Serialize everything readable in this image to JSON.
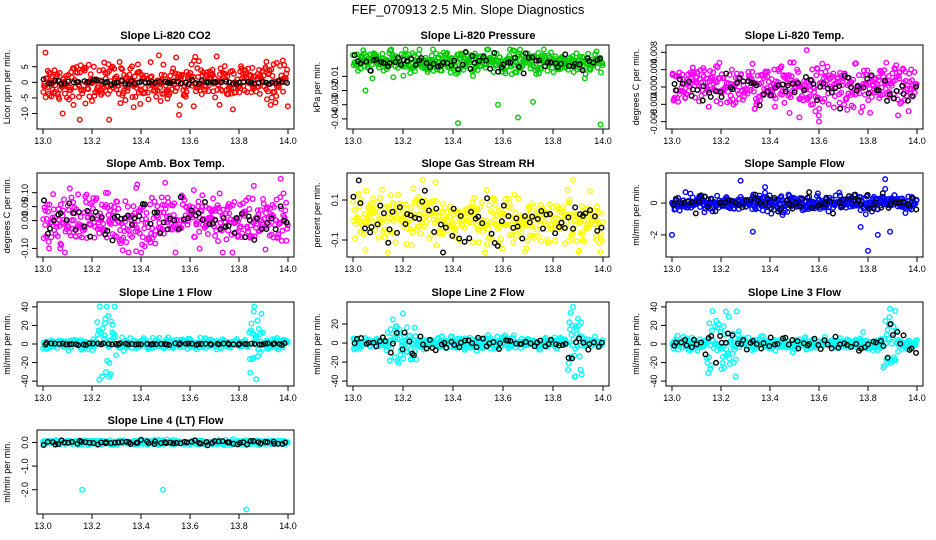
{
  "figure_title": "FEF_070913  2.5 Min. Slope Diagnostics",
  "colors": {
    "red": "#ff0000",
    "green": "#00cc00",
    "magenta": "#ff00ff",
    "yellow": "#ffff00",
    "blue": "#0000ff",
    "cyan": "#00ffff",
    "black": "#000000"
  },
  "chart_data": [
    {
      "type": "scatter",
      "title": "Slope Li-820 CO2",
      "ylabel": "Licor ppm per min.",
      "xlim": [
        13.0,
        14.0
      ],
      "xticks": [
        "13.0",
        "13.2",
        "13.4",
        "13.6",
        "13.8",
        "14.0"
      ],
      "ylim": [
        -14,
        11
      ],
      "yticks": [
        "-10",
        "-5",
        "0",
        "5"
      ],
      "ytick_values": [
        -10,
        -5,
        0,
        5
      ],
      "color": "red",
      "base": 0,
      "noise": 3.0,
      "black_noise": 0.4,
      "outliers": [
        [
          13.01,
          9.5
        ],
        [
          13.08,
          -10
        ],
        [
          13.15,
          -12
        ],
        [
          13.2,
          -6
        ],
        [
          13.27,
          -12
        ],
        [
          13.37,
          -8
        ],
        [
          13.48,
          -6
        ],
        [
          13.98,
          -3
        ]
      ]
    },
    {
      "type": "scatter",
      "title": "Slope Li-820 Pressure",
      "ylabel": "kPa per min.",
      "xlim": [
        13.0,
        14.0
      ],
      "xticks": [
        "13.0",
        "13.2",
        "13.4",
        "13.6",
        "13.8",
        "14.0"
      ],
      "ylim": [
        -0.045,
        0.01
      ],
      "yticks": [
        "-0.04",
        "-0.03",
        "-0.02",
        "-0.01"
      ],
      "ytick_values": [
        -0.04,
        -0.03,
        -0.02,
        -0.01
      ],
      "color": "green",
      "base": 0,
      "noise": 0.004,
      "black_noise": 0.003,
      "outliers": [
        [
          13.05,
          -0.02
        ],
        [
          13.42,
          -0.043
        ],
        [
          13.58,
          -0.03
        ],
        [
          13.66,
          -0.039
        ],
        [
          13.72,
          -0.028
        ],
        [
          13.99,
          -0.045
        ]
      ]
    },
    {
      "type": "scatter",
      "title": "Slope Li-820 Temp.",
      "ylabel": "degrees C per min.",
      "xlim": [
        13.0,
        14.0
      ],
      "xticks": [
        "13.0",
        "13.2",
        "13.4",
        "13.6",
        "13.8",
        "14.0"
      ],
      "ylim": [
        -0.009,
        0.009
      ],
      "yticks": [
        "-0.008",
        "-0.004",
        "0.000",
        "0.004",
        "0.008"
      ],
      "ytick_values": [
        -0.008,
        -0.004,
        0.0,
        0.004,
        0.008
      ],
      "color": "magenta",
      "base": 0,
      "noise": 0.0025,
      "black_noise": 0.0015,
      "outliers": [
        [
          13.55,
          0.0085
        ],
        [
          13.52,
          -0.007
        ],
        [
          13.6,
          -0.008
        ],
        [
          13.48,
          -0.006
        ]
      ]
    },
    {
      "type": "scatter",
      "title": "Slope Amb. Box Temp.",
      "ylabel": "degrees C per min.",
      "xlim": [
        13.0,
        14.0
      ],
      "xticks": [
        "13.0",
        "13.2",
        "13.4",
        "13.6",
        "13.8",
        "14.0"
      ],
      "ylim": [
        -0.12,
        0.16
      ],
      "yticks": [
        "-0.10",
        "0.00",
        "0.05",
        "0.10"
      ],
      "ytick_values": [
        -0.1,
        0.0,
        0.05,
        0.1
      ],
      "color": "magenta",
      "base": 0,
      "noise": 0.05,
      "black_noise": 0.04,
      "outliers": [
        [
          13.97,
          0.15
        ],
        [
          13.07,
          -0.1
        ],
        [
          13.38,
          -0.11
        ]
      ]
    },
    {
      "type": "scatter",
      "title": "Slope Gas Stream RH",
      "ylabel": "percent per min.",
      "xlim": [
        13.0,
        14.0
      ],
      "xticks": [
        "13.0",
        "13.2",
        "13.4",
        "13.6",
        "13.8",
        "14.0"
      ],
      "ylim": [
        -0.17,
        0.22
      ],
      "yticks": [
        "-0.1",
        "0.1"
      ],
      "ytick_values": [
        -0.1,
        0.1
      ],
      "color": "yellow",
      "base": 0,
      "noise": 0.06,
      "black_noise": 0.07,
      "outliers": [
        [
          13.28,
          0.2
        ],
        [
          13.88,
          0.2
        ],
        [
          13.05,
          -0.15
        ],
        [
          13.99,
          -0.16
        ]
      ]
    },
    {
      "type": "scatter",
      "title": "Slope Sample Flow",
      "ylabel": "ml/min per min.",
      "xlim": [
        13.0,
        14.0
      ],
      "xticks": [
        "13.0",
        "13.2",
        "13.4",
        "13.6",
        "13.8",
        "14.0"
      ],
      "ylim": [
        -3.2,
        1.7
      ],
      "yticks": [
        "-2",
        "0"
      ],
      "ytick_values": [
        -2,
        0
      ],
      "color": "blue",
      "base": 0,
      "noise": 0.25,
      "black_noise": 0.3,
      "outliers": [
        [
          13.0,
          -2.0
        ],
        [
          13.28,
          1.4
        ],
        [
          13.33,
          -1.8
        ],
        [
          13.38,
          1.0
        ],
        [
          13.77,
          -1.5
        ],
        [
          13.84,
          -2.0
        ],
        [
          13.89,
          -1.8
        ],
        [
          13.87,
          1.5
        ],
        [
          13.8,
          -3.0
        ]
      ]
    },
    {
      "type": "scatter",
      "title": "Slope Line 1 Flow",
      "ylabel": "ml/min per min.",
      "xlim": [
        13.0,
        14.0
      ],
      "xticks": [
        "13.0",
        "13.2",
        "13.4",
        "13.6",
        "13.8",
        "14.0"
      ],
      "ylim": [
        -42,
        42
      ],
      "yticks": [
        "-40",
        "-20",
        "0",
        "20",
        "40"
      ],
      "ytick_values": [
        -40,
        -20,
        0,
        20,
        40
      ],
      "color": "cyan",
      "base": 0,
      "noise": 3,
      "black_noise": 0.5,
      "spikes": [
        [
          13.22,
          13.3,
          32
        ],
        [
          13.84,
          13.9,
          30
        ]
      ],
      "outliers": [
        [
          13.26,
          42
        ],
        [
          13.27,
          -35
        ],
        [
          13.87,
          -38
        ],
        [
          13.86,
          35
        ]
      ]
    },
    {
      "type": "scatter",
      "title": "Slope Line 2 Flow",
      "ylabel": "ml/min per min.",
      "xlim": [
        13.0,
        14.0
      ],
      "xticks": [
        "13.0",
        "13.2",
        "13.4",
        "13.6",
        "13.8",
        "14.0"
      ],
      "ylim": [
        -42,
        40
      ],
      "yticks": [
        "-40",
        "-20",
        "0",
        "20"
      ],
      "ytick_values": [
        -40,
        -20,
        0,
        20
      ],
      "color": "cyan",
      "base": 0,
      "noise": 3,
      "black_noise": 3,
      "spikes": [
        [
          13.13,
          13.26,
          20
        ],
        [
          13.86,
          13.92,
          32
        ]
      ],
      "outliers": [
        [
          13.2,
          31
        ],
        [
          13.88,
          38
        ],
        [
          13.89,
          -35
        ],
        [
          13.91,
          -28
        ]
      ]
    },
    {
      "type": "scatter",
      "title": "Slope Line 3 Flow",
      "ylabel": "ml/min per min.",
      "xlim": [
        13.0,
        14.0
      ],
      "xticks": [
        "13.0",
        "13.2",
        "13.4",
        "13.6",
        "13.8",
        "14.0"
      ],
      "ylim": [
        -42,
        42
      ],
      "yticks": [
        "-40",
        "-20",
        "0",
        "20",
        "40"
      ],
      "ytick_values": [
        -40,
        -20,
        0,
        20,
        40
      ],
      "color": "cyan",
      "base": 0,
      "noise": 3,
      "black_noise": 4,
      "spikes": [
        [
          13.14,
          13.28,
          25
        ],
        [
          13.86,
          13.92,
          30
        ]
      ],
      "outliers": [
        [
          13.22,
          35
        ],
        [
          13.26,
          -35
        ],
        [
          13.89,
          38
        ],
        [
          13.88,
          -20
        ]
      ]
    },
    {
      "type": "scatter",
      "title": "Slope Line 4 (LT) Flow",
      "ylabel": "ml/min per min.",
      "xlim": [
        13.0,
        14.0
      ],
      "xticks": [
        "13.0",
        "13.2",
        "13.4",
        "13.6",
        "13.8",
        "14.0"
      ],
      "ylim": [
        -2.9,
        0.4
      ],
      "yticks": [
        "-2.0",
        "-1.0",
        "0.0"
      ],
      "ytick_values": [
        -2.0,
        -1.0,
        0.0
      ],
      "color": "cyan",
      "base": 0,
      "noise": 0.05,
      "black_noise": 0.05,
      "outliers": [
        [
          13.16,
          -2.0
        ],
        [
          13.49,
          -2.0
        ],
        [
          13.83,
          -2.9
        ],
        [
          13.15,
          -0.1
        ],
        [
          13.6,
          -0.1
        ]
      ]
    }
  ]
}
